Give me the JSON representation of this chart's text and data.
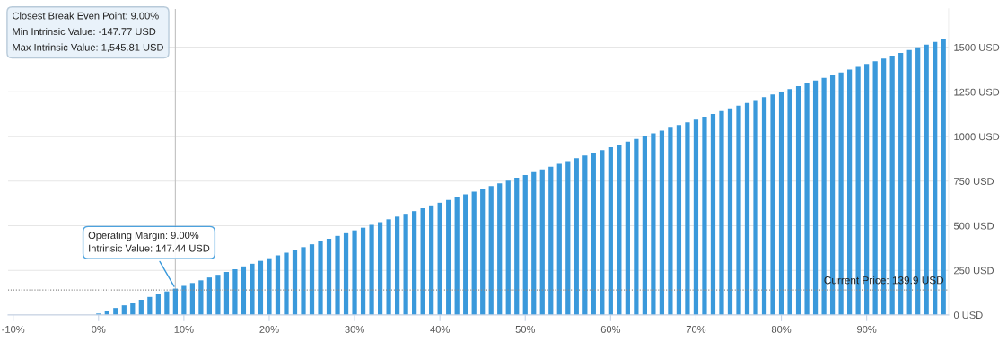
{
  "chart_data": {
    "type": "bar",
    "x": [
      0,
      1,
      2,
      3,
      4,
      5,
      6,
      7,
      8,
      9,
      10,
      11,
      12,
      13,
      14,
      15,
      16,
      17,
      18,
      19,
      20,
      21,
      22,
      23,
      24,
      25,
      26,
      27,
      28,
      29,
      30,
      31,
      32,
      33,
      34,
      35,
      36,
      37,
      38,
      39,
      40,
      41,
      42,
      43,
      44,
      45,
      46,
      47,
      48,
      49,
      50,
      51,
      52,
      53,
      54,
      55,
      56,
      57,
      58,
      59,
      60,
      61,
      62,
      63,
      64,
      65,
      66,
      67,
      68,
      69,
      70,
      71,
      72,
      73,
      74,
      75,
      76,
      77,
      78,
      79,
      80,
      81,
      82,
      83,
      84,
      85,
      86,
      87,
      88,
      89,
      90,
      91,
      92,
      93,
      94,
      95,
      96,
      97,
      98,
      99
    ],
    "series": [
      {
        "color": "#3a99db",
        "values": [
          8,
          23,
          39,
          54,
          70,
          85,
          101,
          116,
          132,
          147.44,
          163,
          179,
          194,
          210,
          225,
          241,
          256,
          272,
          287,
          303,
          318,
          334,
          349,
          365,
          380,
          396,
          412,
          427,
          443,
          458,
          474,
          489,
          505,
          520,
          536,
          551,
          567,
          582,
          598,
          614,
          629,
          645,
          660,
          676,
          691,
          707,
          722,
          738,
          753,
          769,
          784,
          800,
          816,
          831,
          847,
          862,
          878,
          893,
          909,
          924,
          940,
          955,
          971,
          986,
          1002,
          1018,
          1033,
          1049,
          1064,
          1080,
          1095,
          1111,
          1126,
          1142,
          1157,
          1173,
          1188,
          1204,
          1220,
          1235,
          1251,
          1266,
          1282,
          1297,
          1313,
          1328,
          1344,
          1359,
          1375,
          1390,
          1406,
          1421,
          1437,
          1453,
          1468,
          1484,
          1499,
          1515,
          1530,
          1545.81
        ]
      }
    ],
    "xlim": [
      -10.6,
      99.6
    ],
    "xticks": [
      {
        "value": -10,
        "label": "-10%"
      },
      {
        "value": 0,
        "label": "0%"
      },
      {
        "value": 10,
        "label": "10%"
      },
      {
        "value": 20,
        "label": "20%"
      },
      {
        "value": 30,
        "label": "30%"
      },
      {
        "value": 40,
        "label": "40%"
      },
      {
        "value": 50,
        "label": "50%"
      },
      {
        "value": 60,
        "label": "60%"
      },
      {
        "value": 70,
        "label": "70%"
      },
      {
        "value": 80,
        "label": "80%"
      },
      {
        "value": 90,
        "label": "90%"
      }
    ],
    "ylim": [
      0,
      1715
    ],
    "yticks": [
      {
        "value": 0,
        "label": "0 USD"
      },
      {
        "value": 250,
        "label": "250 USD"
      },
      {
        "value": 500,
        "label": "500 USD"
      },
      {
        "value": 750,
        "label": "750 USD"
      },
      {
        "value": 1000,
        "label": "1000 USD"
      },
      {
        "value": 1250,
        "label": "1250 USD"
      },
      {
        "value": 1500,
        "label": "1500 USD"
      }
    ],
    "grid": "y",
    "ref_lines": [
      {
        "axis": "y",
        "value": 139.9,
        "label": "Current Price: 139.9 USD",
        "color": "#888888",
        "line_style": "dotted"
      },
      {
        "axis": "x",
        "value": 9,
        "color": "#c0c0c0",
        "line_style": "solid"
      }
    ],
    "annotations": [
      "Closest Break Even Point: 9.00%",
      "Min Intrinsic Value: -147.77 USD",
      "Max Intrinsic Value: 1,545.81 USD",
      {
        "text": "Operating Margin: 9.00%\nIntrinsic Value: 147.44 USD",
        "x": 9,
        "y": 147.44
      }
    ]
  }
}
